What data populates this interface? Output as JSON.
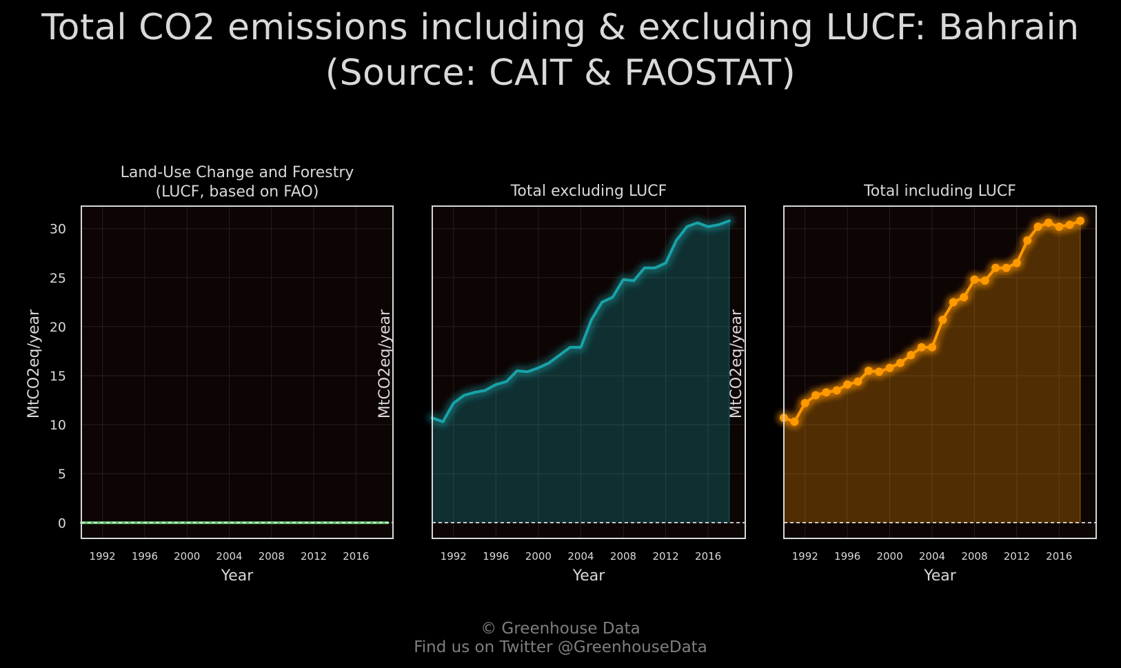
{
  "title_line1": "Total CO2 emissions including & excluding LUCF: Bahrain",
  "title_line2": "(Source: CAIT & FAOSTAT)",
  "footer_line1": "© Greenhouse Data",
  "footer_line2": "Find us on Twitter @GreenhouseData",
  "colors": {
    "background": "#000000",
    "panel_background": "#0d0404",
    "frame": "#d9d9d9",
    "text": "#d9d9d9",
    "footer_text": "#7f7f7f",
    "lucf": "#5fbf6a",
    "excluding": "#17a3a8",
    "including": "#ff9900"
  },
  "chart_data": [
    {
      "type": "line",
      "title": "Land-Use Change and Forestry\n(LUCF, based on FAO)",
      "xlabel": "Year",
      "ylabel": "MtCO2eq/year",
      "xticks": [
        1992,
        1996,
        2000,
        2004,
        2008,
        2012,
        2016
      ],
      "yticks": [
        0,
        5,
        10,
        15,
        20,
        25,
        30
      ],
      "xlim": [
        1990,
        2019.5
      ],
      "ylim": [
        -1.6,
        32.3
      ],
      "grid": true,
      "zero_line": true,
      "style": "glow",
      "series": [
        {
          "x": [
            1990,
            1991,
            1992,
            1993,
            1994,
            1995,
            1996,
            1997,
            1998,
            1999,
            2000,
            2001,
            2002,
            2003,
            2004,
            2005,
            2006,
            2007,
            2008,
            2009,
            2010,
            2011,
            2012,
            2013,
            2014,
            2015,
            2016,
            2017,
            2018,
            2019
          ],
          "values": [
            0,
            0,
            0,
            0,
            0,
            0,
            0,
            0,
            0,
            0,
            0,
            0,
            0,
            0,
            0,
            0,
            0,
            0,
            0,
            0,
            0,
            0,
            0,
            0,
            0,
            0,
            0,
            0,
            0,
            0
          ]
        }
      ]
    },
    {
      "type": "area",
      "title": "Total excluding LUCF",
      "xlabel": "Year",
      "ylabel": "MtCO2eq/year",
      "xticks": [
        1992,
        1996,
        2000,
        2004,
        2008,
        2012,
        2016
      ],
      "yticks": [],
      "xlim": [
        1990,
        2019.5
      ],
      "ylim": [
        -1.6,
        32.3
      ],
      "grid": true,
      "zero_line": true,
      "style": "glow",
      "series": [
        {
          "x": [
            1990,
            1991,
            1992,
            1993,
            1994,
            1995,
            1996,
            1997,
            1998,
            1999,
            2000,
            2001,
            2002,
            2003,
            2004,
            2005,
            2006,
            2007,
            2008,
            2009,
            2010,
            2011,
            2012,
            2013,
            2014,
            2015,
            2016,
            2017,
            2018
          ],
          "values": [
            10.7,
            10.3,
            12.2,
            13.0,
            13.3,
            13.5,
            14.1,
            14.4,
            15.5,
            15.4,
            15.8,
            16.3,
            17.1,
            17.9,
            17.9,
            20.7,
            22.5,
            23.0,
            24.8,
            24.7,
            26.0,
            26.0,
            26.5,
            28.8,
            30.2,
            30.6,
            30.2,
            30.4,
            30.8
          ]
        }
      ]
    },
    {
      "type": "area",
      "title": "Total including LUCF",
      "xlabel": "Year",
      "ylabel": "MtCO2eq/year",
      "xticks": [
        1992,
        1996,
        2000,
        2004,
        2008,
        2012,
        2016
      ],
      "yticks": [],
      "xlim": [
        1990,
        2019.5
      ],
      "ylim": [
        -1.6,
        32.3
      ],
      "grid": true,
      "zero_line": true,
      "style": "glow",
      "markers": true,
      "series": [
        {
          "x": [
            1990,
            1991,
            1992,
            1993,
            1994,
            1995,
            1996,
            1997,
            1998,
            1999,
            2000,
            2001,
            2002,
            2003,
            2004,
            2005,
            2006,
            2007,
            2008,
            2009,
            2010,
            2011,
            2012,
            2013,
            2014,
            2015,
            2016,
            2017,
            2018
          ],
          "values": [
            10.7,
            10.3,
            12.2,
            13.0,
            13.3,
            13.5,
            14.1,
            14.4,
            15.5,
            15.4,
            15.8,
            16.3,
            17.1,
            17.9,
            17.9,
            20.7,
            22.5,
            23.0,
            24.8,
            24.7,
            26.0,
            26.0,
            26.5,
            28.8,
            30.2,
            30.6,
            30.2,
            30.4,
            30.8
          ]
        }
      ]
    }
  ]
}
